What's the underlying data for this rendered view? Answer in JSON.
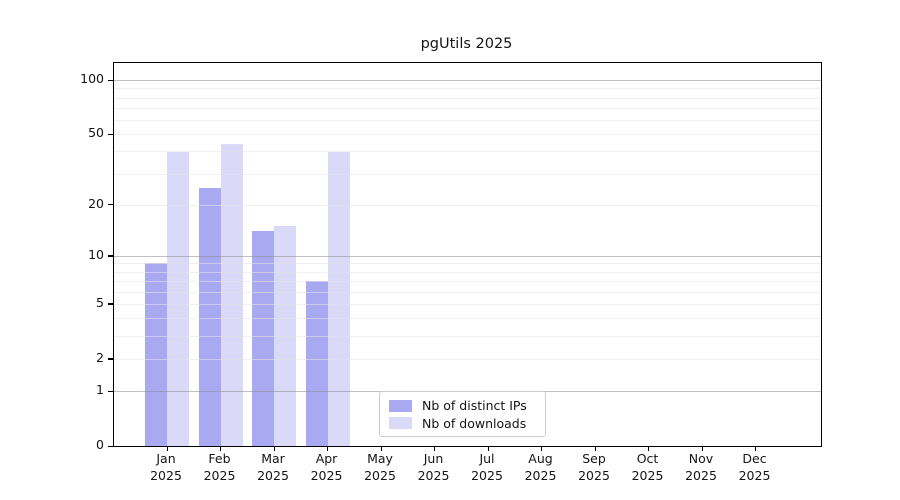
{
  "chart_data": {
    "type": "bar",
    "title": "pgUtils 2025",
    "categories": [
      "Jan",
      "Feb",
      "Mar",
      "Apr",
      "May",
      "Jun",
      "Jul",
      "Aug",
      "Sep",
      "Oct",
      "Nov",
      "Dec"
    ],
    "year_label": "2025",
    "series": [
      {
        "name": "Nb of distinct IPs",
        "color": "#a9a9f2",
        "values": [
          9,
          25,
          14,
          7,
          null,
          null,
          null,
          null,
          null,
          null,
          null,
          null
        ]
      },
      {
        "name": "Nb of downloads",
        "color": "#dadaf8",
        "values": [
          40,
          44,
          15,
          40,
          null,
          null,
          null,
          null,
          null,
          null,
          null,
          null
        ]
      }
    ],
    "y_axis": {
      "scale": "log1p",
      "range": [
        0,
        100
      ],
      "tick_labels": [
        "100",
        "50",
        "20",
        "10",
        "5",
        "2",
        "1",
        "0"
      ],
      "tick_values": [
        100,
        50,
        20,
        10,
        5,
        2,
        1,
        0
      ],
      "major_gridlines": [
        100,
        10,
        1
      ],
      "minor_gridlines": [
        90,
        80,
        70,
        60,
        50,
        40,
        30,
        20,
        9,
        8,
        7,
        6,
        5,
        4,
        3,
        2
      ]
    },
    "legend": {
      "position": "bottom-center",
      "entries": [
        "Nb of distinct IPs",
        "Nb of downloads"
      ]
    },
    "grid": true
  }
}
